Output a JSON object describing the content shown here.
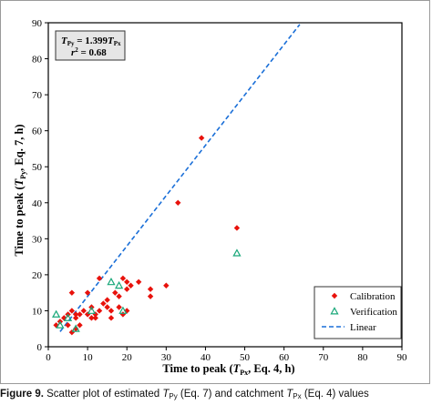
{
  "chart_data": {
    "type": "scatter",
    "xlabel_parts": [
      "Time to peak (",
      "T",
      "Px",
      ", Eq. 4, h)"
    ],
    "ylabel_parts": [
      "Time to peak (",
      "T",
      "Py",
      ", Eq. 7, h)"
    ],
    "xlim": [
      0,
      90
    ],
    "ylim": [
      0,
      90
    ],
    "xticks": [
      0,
      10,
      20,
      30,
      40,
      50,
      60,
      70,
      80,
      90
    ],
    "yticks": [
      0,
      10,
      20,
      30,
      40,
      50,
      60,
      70,
      80,
      90
    ],
    "grid": false,
    "legend_position": "bottom-right",
    "equation_box": {
      "line1_parts": [
        "T",
        "Py",
        " = 1.399",
        "T",
        "Px"
      ],
      "line2_parts": [
        "r",
        "2",
        " = 0.68"
      ]
    },
    "series": [
      {
        "name": "Calibration",
        "marker": "diamond",
        "color": "#e8120c",
        "points": [
          [
            2,
            6
          ],
          [
            3,
            7
          ],
          [
            4,
            8
          ],
          [
            5,
            9
          ],
          [
            5,
            6
          ],
          [
            6,
            10
          ],
          [
            6,
            4
          ],
          [
            6,
            15
          ],
          [
            7,
            9
          ],
          [
            7,
            8
          ],
          [
            7,
            5
          ],
          [
            8,
            9
          ],
          [
            8,
            6
          ],
          [
            9,
            10
          ],
          [
            10,
            15
          ],
          [
            10,
            9
          ],
          [
            11,
            8
          ],
          [
            11,
            11
          ],
          [
            12,
            9
          ],
          [
            12,
            8
          ],
          [
            13,
            19
          ],
          [
            13,
            10
          ],
          [
            14,
            12
          ],
          [
            15,
            13
          ],
          [
            15,
            11
          ],
          [
            16,
            8
          ],
          [
            16,
            10
          ],
          [
            17,
            15
          ],
          [
            18,
            14
          ],
          [
            18,
            11
          ],
          [
            19,
            19
          ],
          [
            19,
            9
          ],
          [
            20,
            18
          ],
          [
            20,
            10
          ],
          [
            20,
            16
          ],
          [
            21,
            17
          ],
          [
            23,
            18
          ],
          [
            26,
            16
          ],
          [
            26,
            14
          ],
          [
            30,
            17
          ],
          [
            33,
            40
          ],
          [
            39,
            58
          ],
          [
            48,
            33
          ]
        ]
      },
      {
        "name": "Verification",
        "marker": "triangle",
        "color": "#1aa87a",
        "points": [
          [
            2,
            9
          ],
          [
            3,
            6
          ],
          [
            5,
            8
          ],
          [
            7,
            5
          ],
          [
            11,
            10
          ],
          [
            16,
            18
          ],
          [
            18,
            17
          ],
          [
            19,
            10
          ],
          [
            48,
            26
          ]
        ]
      },
      {
        "name": "Linear",
        "type": "line",
        "style": "dashed",
        "color": "#1a6fd8",
        "slope": 1.399,
        "x": [
          3,
          64
        ]
      }
    ]
  },
  "caption": {
    "label": "Figure 9.",
    "text_parts": [
      " Scatter plot of estimated ",
      "T",
      "Py",
      " (Eq. 7) and catchment ",
      "T",
      "Px",
      " (Eq. 4) values"
    ]
  }
}
